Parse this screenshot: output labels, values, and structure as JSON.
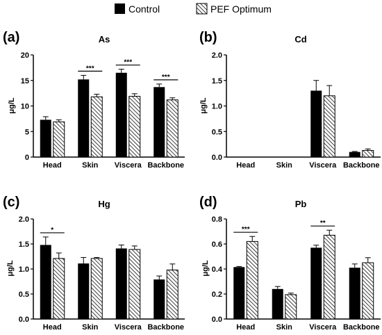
{
  "legend": {
    "items": [
      {
        "label": "Control",
        "pattern": "solid",
        "color": "#000000"
      },
      {
        "label": "PEF Optimum",
        "pattern": "hatch",
        "color": "#000000"
      }
    ]
  },
  "chart_data": [
    {
      "panel_label": "(a)",
      "title": "As",
      "type": "bar",
      "ylabel": "μg/L",
      "ylim": [
        0,
        20
      ],
      "yticks": [
        "0",
        "5",
        "10",
        "15",
        "20"
      ],
      "categories": [
        "Head",
        "Skin",
        "Viscera",
        "Backbone"
      ],
      "series": [
        {
          "name": "Control",
          "values": [
            7.3,
            15.2,
            16.5,
            13.7
          ],
          "errors": [
            0.6,
            0.8,
            0.7,
            0.6
          ]
        },
        {
          "name": "PEF Optimum",
          "values": [
            6.9,
            11.8,
            11.9,
            11.2
          ],
          "errors": [
            0.4,
            0.5,
            0.5,
            0.4
          ]
        }
      ],
      "significance": [
        {
          "category": "Skin",
          "text": "***"
        },
        {
          "category": "Viscera",
          "text": "***"
        },
        {
          "category": "Backbone",
          "text": "***"
        }
      ]
    },
    {
      "panel_label": "(b)",
      "title": "Cd",
      "type": "bar",
      "ylabel": "μg/L",
      "ylim": [
        0,
        2.0
      ],
      "yticks": [
        "0.0",
        "0.5",
        "1.0",
        "1.5",
        "2.0"
      ],
      "categories": [
        "Head",
        "Skin",
        "Viscera",
        "Backbone"
      ],
      "series": [
        {
          "name": "Control",
          "values": [
            0,
            0,
            1.3,
            0.1
          ],
          "errors": [
            0,
            0,
            0.2,
            0.01
          ]
        },
        {
          "name": "PEF Optimum",
          "values": [
            0,
            0,
            1.2,
            0.13
          ],
          "errors": [
            0,
            0,
            0.2,
            0.03
          ]
        }
      ],
      "significance": []
    },
    {
      "panel_label": "(c)",
      "title": "Hg",
      "type": "bar",
      "ylabel": "μg/L",
      "ylim": [
        0,
        2.0
      ],
      "yticks": [
        "0.0",
        "0.5",
        "1.0",
        "1.5",
        "2.0"
      ],
      "categories": [
        "Head",
        "Skin",
        "Viscera",
        "Backbone"
      ],
      "series": [
        {
          "name": "Control",
          "values": [
            1.48,
            1.11,
            1.41,
            0.79
          ],
          "errors": [
            0.16,
            0.12,
            0.07,
            0.07
          ]
        },
        {
          "name": "PEF Optimum",
          "values": [
            1.21,
            1.21,
            1.39,
            0.98
          ],
          "errors": [
            0.11,
            0.02,
            0.07,
            0.12
          ]
        }
      ],
      "significance": [
        {
          "category": "Head",
          "text": "*"
        }
      ]
    },
    {
      "panel_label": "(d)",
      "title": "Pb",
      "type": "bar",
      "ylabel": "μg/L",
      "ylim": [
        0,
        0.8
      ],
      "yticks": [
        "0.0",
        "0.2",
        "0.4",
        "0.6",
        "0.8"
      ],
      "categories": [
        "Head",
        "Skin",
        "Viscera",
        "Backbone"
      ],
      "series": [
        {
          "name": "Control",
          "values": [
            0.415,
            0.24,
            0.57,
            0.41
          ],
          "errors": [
            0.005,
            0.02,
            0.02,
            0.03
          ]
        },
        {
          "name": "PEF Optimum",
          "values": [
            0.62,
            0.195,
            0.67,
            0.45
          ],
          "errors": [
            0.04,
            0.012,
            0.04,
            0.04
          ]
        }
      ],
      "significance": [
        {
          "category": "Head",
          "text": "***"
        },
        {
          "category": "Viscera",
          "text": "**"
        }
      ]
    }
  ]
}
